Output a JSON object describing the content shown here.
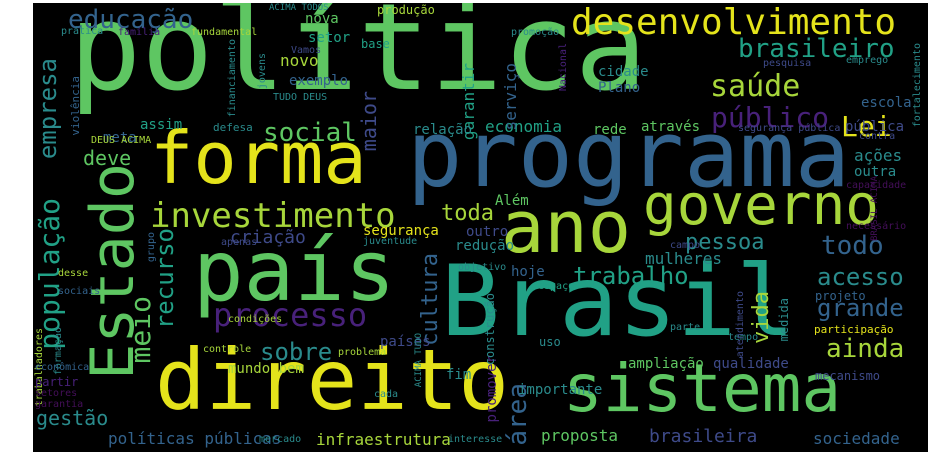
{
  "palette": {
    "background": "#000000",
    "yellow": "#e4e31b",
    "lime": "#a7d63b",
    "green": "#5ec662",
    "teal": "#21a186",
    "cyan": "#2a8b8c",
    "blue": "#33638d",
    "indigo": "#3e4a89",
    "purple": "#48217a",
    "violet": "#440f59"
  },
  "words": [
    {
      "text": "política",
      "size": 120,
      "color": "#5ec662"
    },
    {
      "text": "programa",
      "size": 92,
      "color": "#33638d"
    },
    {
      "text": "Brasil",
      "size": 98,
      "color": "#21a186"
    },
    {
      "text": "país",
      "size": 84,
      "color": "#5ec662"
    },
    {
      "text": "direito",
      "size": 84,
      "color": "#e4e31b"
    },
    {
      "text": "ano",
      "size": 72,
      "color": "#a7d63b"
    },
    {
      "text": "forma",
      "size": 72,
      "color": "#e4e31b"
    },
    {
      "text": "Estado",
      "size": 60,
      "color": "#5ec662"
    },
    {
      "text": "sistema",
      "size": 66,
      "color": "#5ec662"
    },
    {
      "text": "governo",
      "size": 56,
      "color": "#a7d63b"
    },
    {
      "text": "desenvolvimento",
      "size": 36,
      "color": "#e4e31b"
    },
    {
      "text": "investimento",
      "size": 34,
      "color": "#a7d63b"
    },
    {
      "text": "processo",
      "size": 32,
      "color": "#48217a"
    },
    {
      "text": "educação",
      "size": 26,
      "color": "#33638d"
    },
    {
      "text": "brasileiro",
      "size": 26,
      "color": "#21a186"
    },
    {
      "text": "saúde",
      "size": 30,
      "color": "#a7d63b"
    },
    {
      "text": "público",
      "size": 28,
      "color": "#48217a"
    },
    {
      "text": "Lei",
      "size": 28,
      "color": "#e4e31b"
    },
    {
      "text": "social",
      "size": 26,
      "color": "#5ec662"
    },
    {
      "text": "população",
      "size": 28,
      "color": "#21a186"
    },
    {
      "text": "empresa",
      "size": 24,
      "color": "#2a8b8c"
    },
    {
      "text": "meio",
      "size": 28,
      "color": "#5ec662"
    },
    {
      "text": "recurso",
      "size": 24,
      "color": "#21a186"
    },
    {
      "text": "todo",
      "size": 26,
      "color": "#33638d"
    },
    {
      "text": "trabalho",
      "size": 24,
      "color": "#21a186"
    },
    {
      "text": "pessoa",
      "size": 22,
      "color": "#2a8b8c"
    },
    {
      "text": "acesso",
      "size": 24,
      "color": "#2a8b8c"
    },
    {
      "text": "grande",
      "size": 24,
      "color": "#33638d"
    },
    {
      "text": "ainda",
      "size": 26,
      "color": "#a7d63b"
    },
    {
      "text": "sobre",
      "size": 24,
      "color": "#2a8b8c"
    },
    {
      "text": "cultura",
      "size": 22,
      "color": "#33638d"
    },
    {
      "text": "vida",
      "size": 22,
      "color": "#a7d63b"
    },
    {
      "text": "área",
      "size": 26,
      "color": "#33638d"
    },
    {
      "text": "toda",
      "size": 22,
      "color": "#a7d63b"
    },
    {
      "text": "deve",
      "size": 20,
      "color": "#5ec662"
    },
    {
      "text": "maior",
      "size": 20,
      "color": "#3e4a89"
    },
    {
      "text": "economia",
      "size": 16,
      "color": "#21a186"
    },
    {
      "text": "serviço",
      "size": 16,
      "color": "#33638d"
    },
    {
      "text": "garantir",
      "size": 16,
      "color": "#21a186"
    },
    {
      "text": "novo",
      "size": 16,
      "color": "#a7d63b"
    },
    {
      "text": "nova",
      "size": 14,
      "color": "#5ec662"
    },
    {
      "text": "setor",
      "size": 14,
      "color": "#21a186"
    },
    {
      "text": "exemplo",
      "size": 14,
      "color": "#33638d"
    },
    {
      "text": "cidade",
      "size": 14,
      "color": "#2a8b8c"
    },
    {
      "text": "Plano",
      "size": 14,
      "color": "#33638d"
    },
    {
      "text": "escola",
      "size": 14,
      "color": "#33638d"
    },
    {
      "text": "ações",
      "size": 16,
      "color": "#2a8b8c"
    },
    {
      "text": "outra",
      "size": 14,
      "color": "#2a8b8c"
    },
    {
      "text": "pública",
      "size": 14,
      "color": "#3e4a89"
    },
    {
      "text": "relação",
      "size": 14,
      "color": "#2a8b8c"
    },
    {
      "text": "rede",
      "size": 14,
      "color": "#5ec662"
    },
    {
      "text": "através",
      "size": 14,
      "color": "#5ec662"
    },
    {
      "text": "criação",
      "size": 18,
      "color": "#3e4a89"
    },
    {
      "text": "segurança",
      "size": 14,
      "color": "#e4e31b"
    },
    {
      "text": "Além",
      "size": 14,
      "color": "#5ec662"
    },
    {
      "text": "mulheres",
      "size": 16,
      "color": "#2a8b8c"
    },
    {
      "text": "redução",
      "size": 14,
      "color": "#2a8b8c"
    },
    {
      "text": "outro",
      "size": 14,
      "color": "#3e4a89"
    },
    {
      "text": "hoje",
      "size": 14,
      "color": "#33638d"
    },
    {
      "text": "gestão",
      "size": 20,
      "color": "#2a8b8c"
    },
    {
      "text": "políticas públicas",
      "size": 16,
      "color": "#33638d"
    },
    {
      "text": "infraestrutura",
      "size": 16,
      "color": "#a7d63b"
    },
    {
      "text": "mundo bem",
      "size": 14,
      "color": "#a7d63b"
    },
    {
      "text": "fim",
      "size": 14,
      "color": "#2a8b8c"
    },
    {
      "text": "proposta",
      "size": 16,
      "color": "#5ec662"
    },
    {
      "text": "brasileira",
      "size": 18,
      "color": "#3e4a89"
    },
    {
      "text": "sociedade",
      "size": 16,
      "color": "#33638d"
    },
    {
      "text": "ampliação",
      "size": 14,
      "color": "#5ec662"
    },
    {
      "text": "qualidade",
      "size": 14,
      "color": "#3e4a89"
    },
    {
      "text": "importante",
      "size": 14,
      "color": "#2a8b8c"
    },
    {
      "text": "países",
      "size": 14,
      "color": "#3e4a89"
    },
    {
      "text": "promover",
      "size": 14,
      "color": "#48217a"
    },
    {
      "text": "construção",
      "size": 12,
      "color": "#2a8b8c"
    },
    {
      "text": "projeto",
      "size": 12,
      "color": "#33638d"
    },
    {
      "text": "participação",
      "size": 11,
      "color": "#e4e31b"
    },
    {
      "text": "medida",
      "size": 12,
      "color": "#2a8b8c"
    },
    {
      "text": "mecanismo",
      "size": 12,
      "color": "#3e4a89"
    },
    {
      "text": "produção",
      "size": 12,
      "color": "#a7d63b"
    },
    {
      "text": "base",
      "size": 12,
      "color": "#21a186"
    },
    {
      "text": "violência",
      "size": 11,
      "color": "#33638d"
    },
    {
      "text": "meta",
      "size": 14,
      "color": "#33638d"
    },
    {
      "text": "assim",
      "size": 14,
      "color": "#21a186"
    },
    {
      "text": "defesa",
      "size": 11,
      "color": "#2a8b8c"
    },
    {
      "text": "financiamento",
      "size": 10,
      "color": "#2a8b8c"
    },
    {
      "text": "fundamental",
      "size": 10,
      "color": "#a7d63b"
    },
    {
      "text": "prática",
      "size": 10,
      "color": "#2a8b8c"
    },
    {
      "text": "família",
      "size": 10,
      "color": "#48217a"
    },
    {
      "text": "promoção",
      "size": 10,
      "color": "#2a8b8c"
    },
    {
      "text": "pesquisa",
      "size": 10,
      "color": "#3e4a89"
    },
    {
      "text": "emprego",
      "size": 10,
      "color": "#2a8b8c"
    },
    {
      "text": "fortalecimento",
      "size": 10,
      "color": "#2a8b8c"
    },
    {
      "text": "DEUS ACIMA",
      "size": 10,
      "color": "#a7d63b"
    },
    {
      "text": "ACIMA TODOS",
      "size": 9,
      "color": "#2a8b8c"
    },
    {
      "text": "TUDO DEUS",
      "size": 10,
      "color": "#2a8b8c"
    },
    {
      "text": "Vamos",
      "size": 10,
      "color": "#3e4a89"
    },
    {
      "text": "jovens",
      "size": 10,
      "color": "#2a8b8c"
    },
    {
      "text": "Nacional",
      "size": 10,
      "color": "#48217a"
    },
    {
      "text": "contra",
      "size": 10,
      "color": "#3e4a89"
    },
    {
      "text": "capacidade",
      "size": 10,
      "color": "#440f59"
    },
    {
      "text": "segurança pública",
      "size": 10,
      "color": "#3e4a89"
    },
    {
      "text": "BRASIL ACIMA",
      "size": 9,
      "color": "#440f59"
    },
    {
      "text": "necessário",
      "size": 10,
      "color": "#440f59"
    },
    {
      "text": "campo",
      "size": 10,
      "color": "#3e4a89"
    },
    {
      "text": "objetivo",
      "size": 10,
      "color": "#2a8b8c"
    },
    {
      "text": "juventude",
      "size": 10,
      "color": "#2a8b8c"
    },
    {
      "text": "apenas",
      "size": 10,
      "color": "#3e4a89"
    },
    {
      "text": "grupo",
      "size": 10,
      "color": "#33638d"
    },
    {
      "text": "desse",
      "size": 10,
      "color": "#a7d63b"
    },
    {
      "text": "sociais",
      "size": 10,
      "color": "#33638d"
    },
    {
      "text": "espaço",
      "size": 10,
      "color": "#21a186"
    },
    {
      "text": "uso",
      "size": 12,
      "color": "#2a8b8c"
    },
    {
      "text": "tempo",
      "size": 10,
      "color": "#2a8b8c"
    },
    {
      "text": "parte",
      "size": 10,
      "color": "#2a8b8c"
    },
    {
      "text": "atendimento",
      "size": 10,
      "color": "#3e4a89"
    },
    {
      "text": "trabalhadores",
      "size": 10,
      "color": "#a7d63b"
    },
    {
      "text": "formação",
      "size": 10,
      "color": "#2a8b8c"
    },
    {
      "text": "condições",
      "size": 10,
      "color": "#a7d63b"
    },
    {
      "text": "controle",
      "size": 10,
      "color": "#a7d63b"
    },
    {
      "text": "problema",
      "size": 10,
      "color": "#a7d63b"
    },
    {
      "text": "ACIMA TUDO",
      "size": 9,
      "color": "#2a8b8c"
    },
    {
      "text": "econômica",
      "size": 10,
      "color": "#33638d"
    },
    {
      "text": "partir",
      "size": 12,
      "color": "#48217a"
    },
    {
      "text": "setores",
      "size": 10,
      "color": "#440f59"
    },
    {
      "text": "garantia",
      "size": 10,
      "color": "#440f59"
    },
    {
      "text": "cada",
      "size": 10,
      "color": "#2a8b8c"
    },
    {
      "text": "mercado",
      "size": 10,
      "color": "#2a8b8c"
    },
    {
      "text": "interesse",
      "size": 10,
      "color": "#2a8b8c"
    }
  ]
}
